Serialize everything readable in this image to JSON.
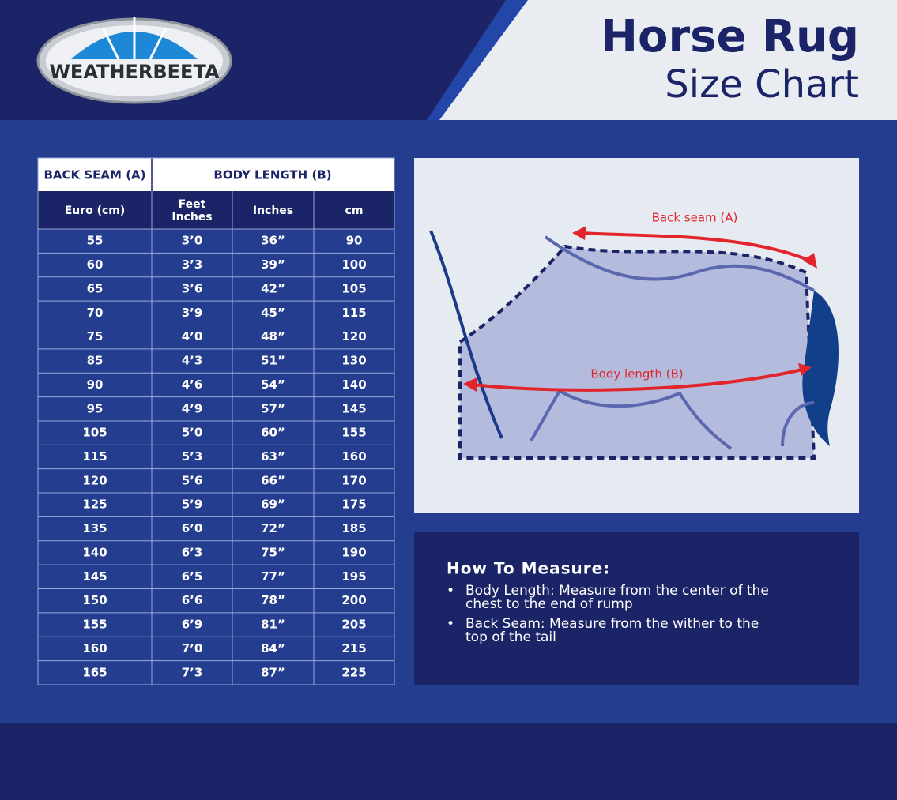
{
  "header": {
    "brand": "WEATHERBEETA",
    "title": "Horse Rug",
    "subtitle": "Size Chart"
  },
  "table": {
    "group_headers": [
      "BACK SEAM (A)",
      "BODY LENGTH (B)"
    ],
    "column_headers": [
      [
        "Euro (cm)"
      ],
      [
        "Feet",
        "Inches"
      ],
      [
        "Inches"
      ],
      [
        "cm"
      ]
    ],
    "rows": [
      [
        "55",
        "3’0",
        "36”",
        "90"
      ],
      [
        "60",
        "3’3",
        "39”",
        "100"
      ],
      [
        "65",
        "3’6",
        "42”",
        "105"
      ],
      [
        "70",
        "3’9",
        "45”",
        "115"
      ],
      [
        "75",
        "4’0",
        "48”",
        "120"
      ],
      [
        "85",
        "4’3",
        "51”",
        "130"
      ],
      [
        "90",
        "4’6",
        "54”",
        "140"
      ],
      [
        "95",
        "4’9",
        "57”",
        "145"
      ],
      [
        "105",
        "5’0",
        "60”",
        "155"
      ],
      [
        "115",
        "5’3",
        "63”",
        "160"
      ],
      [
        "120",
        "5’6",
        "66”",
        "170"
      ],
      [
        "125",
        "5’9",
        "69”",
        "175"
      ],
      [
        "135",
        "6’0",
        "72”",
        "185"
      ],
      [
        "140",
        "6’3",
        "75”",
        "190"
      ],
      [
        "145",
        "6’5",
        "77”",
        "195"
      ],
      [
        "150",
        "6’6",
        "78”",
        "200"
      ],
      [
        "155",
        "6’9",
        "81”",
        "205"
      ],
      [
        "160",
        "7’0",
        "84”",
        "215"
      ],
      [
        "165",
        "7’3",
        "87”",
        "225"
      ]
    ]
  },
  "diagram": {
    "back_seam_label": "Back seam (A)",
    "body_length_label": "Body length (B)"
  },
  "instructions": {
    "title": "How To Measure:",
    "items": [
      {
        "bullet": "•",
        "lines": [
          "Body Length: Measure from the center of the",
          "chest to the end of rump"
        ]
      },
      {
        "bullet": "•",
        "lines": [
          "Back Seam: Measure from the wither to the",
          "top of the tail"
        ]
      }
    ]
  }
}
